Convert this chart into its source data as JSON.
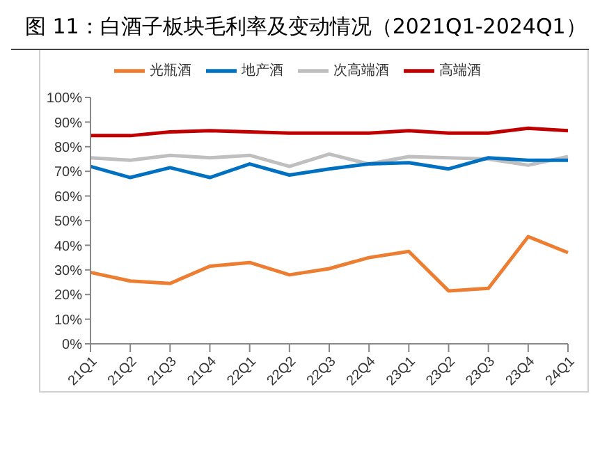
{
  "chart_data": {
    "type": "line",
    "title": "图 11：白酒子板块毛利率及变动情况（2021Q1-2024Q1）",
    "categories": [
      "21Q1",
      "21Q2",
      "21Q3",
      "21Q4",
      "22Q1",
      "22Q2",
      "22Q3",
      "22Q4",
      "23Q1",
      "23Q2",
      "23Q3",
      "23Q4",
      "24Q1"
    ],
    "series": [
      {
        "name": "高端酒",
        "color": "#c00000",
        "values": [
          84.5,
          84.5,
          86,
          86.5,
          86,
          85.5,
          85.5,
          85.5,
          86.5,
          85.5,
          85.5,
          87.5,
          86.5
        ]
      },
      {
        "name": "次高端酒",
        "color": "#bfbfbf",
        "values": [
          75.5,
          74.5,
          76.5,
          75.5,
          76.5,
          72,
          77,
          73,
          76,
          75.5,
          75,
          72.5,
          76
        ]
      },
      {
        "name": "地产酒",
        "color": "#0070c0",
        "values": [
          72,
          67.5,
          71.5,
          67.5,
          73,
          68.5,
          71,
          73,
          73.5,
          71,
          75.5,
          74.5,
          74.5
        ]
      },
      {
        "name": "光瓶酒",
        "color": "#ed7d31",
        "values": [
          29,
          25.5,
          24.5,
          31.5,
          33,
          28,
          30.5,
          35,
          37.5,
          21.5,
          22.5,
          43.5,
          37
        ]
      }
    ],
    "ylim": [
      0,
      100
    ],
    "yticks": [
      {
        "value": 0,
        "label": "0%"
      },
      {
        "value": 10,
        "label": "10%"
      },
      {
        "value": 20,
        "label": "20%"
      },
      {
        "value": 30,
        "label": "30%"
      },
      {
        "value": 40,
        "label": "40%"
      },
      {
        "value": 50,
        "label": "50%"
      },
      {
        "value": 60,
        "label": "60%"
      },
      {
        "value": 70,
        "label": "70%"
      },
      {
        "value": 80,
        "label": "80%"
      },
      {
        "value": 90,
        "label": "90%"
      },
      {
        "value": 100,
        "label": "100%"
      }
    ],
    "grid": false,
    "legend": "top",
    "marker": "none",
    "line_style": "solid"
  }
}
